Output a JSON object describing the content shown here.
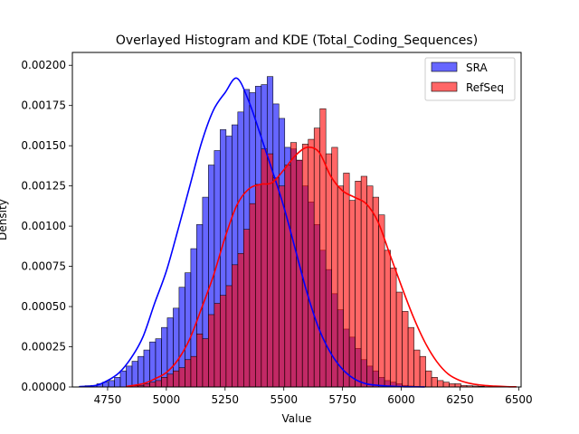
{
  "chart_data": {
    "type": "histogram",
    "title": "Overlayed Histogram and KDE (Total_Coding_Sequences)",
    "xlabel": "Value",
    "ylabel": "Density",
    "xlim": [
      4600,
      6510
    ],
    "ylim": [
      0,
      0.00208
    ],
    "x_ticks": [
      4750,
      5000,
      5250,
      5500,
      5750,
      6000,
      6250,
      6500
    ],
    "x_tick_labels": [
      "4750",
      "5000",
      "5250",
      "5500",
      "5750",
      "6000",
      "6250",
      "6500"
    ],
    "y_ticks": [
      0,
      0.00025,
      0.0005,
      0.00075,
      0.001,
      0.00125,
      0.0015,
      0.00175,
      0.002
    ],
    "y_tick_labels": [
      "0.00000",
      "0.00025",
      "0.00050",
      "0.00075",
      "0.00100",
      "0.00125",
      "0.00150",
      "0.00175",
      "0.00200"
    ],
    "legend_position": "top-right",
    "series": [
      {
        "name": "SRA",
        "color": "#0000ff",
        "bin_start": 4629,
        "bin_width": 25,
        "values": [
          4e-06,
          8e-06,
          1e-05,
          2e-05,
          3e-05,
          4e-05,
          6e-05,
          0.0001,
          0.00013,
          0.00016,
          0.00019,
          0.00023,
          0.00028,
          0.0003,
          0.00037,
          0.00043,
          0.00049,
          0.00062,
          0.00071,
          0.00086,
          0.00101,
          0.00118,
          0.00138,
          0.00147,
          0.0016,
          0.00156,
          0.00163,
          0.00171,
          0.00185,
          0.00183,
          0.00187,
          0.00188,
          0.00193,
          0.00176,
          0.00167,
          0.00149,
          0.00148,
          0.00141,
          0.00125,
          0.00115,
          0.00101,
          0.00085,
          0.00073,
          0.00058,
          0.00048,
          0.00036,
          0.00031,
          0.00024,
          0.00017,
          0.00013,
          0.0001,
          6e-05,
          4e-05,
          3e-05,
          2e-05,
          1e-05,
          6e-06,
          4e-06,
          2e-06,
          1e-06,
          1e-06,
          1e-06
        ]
      },
      {
        "name": "RefSeq",
        "color": "#ff0000",
        "bin_start": 4829,
        "bin_width": 25,
        "values": [
          4e-06,
          8e-06,
          1e-05,
          2e-05,
          3e-05,
          4e-05,
          6e-05,
          8e-05,
          0.0001,
          0.00012,
          0.00017,
          0.00019,
          0.00033,
          0.0003,
          0.00045,
          0.00052,
          0.00057,
          0.00063,
          0.00076,
          0.00083,
          0.00098,
          0.00114,
          0.00126,
          0.00148,
          0.00145,
          0.0013,
          0.00125,
          0.00138,
          0.00152,
          0.00141,
          0.00151,
          0.00154,
          0.00161,
          0.00173,
          0.00145,
          0.00149,
          0.00125,
          0.00133,
          0.00116,
          0.00128,
          0.00131,
          0.00125,
          0.00118,
          0.00107,
          0.00085,
          0.00074,
          0.00059,
          0.00047,
          0.00037,
          0.00023,
          0.00019,
          0.0001,
          6e-05,
          4e-05,
          3e-05,
          2e-05,
          2e-05,
          1e-05,
          8e-06,
          6e-06,
          4e-06,
          2e-06,
          2e-06,
          1e-06,
          1e-06,
          1e-06,
          1e-06
        ]
      }
    ],
    "kde": [
      {
        "name": "SRA",
        "color": "#0000ff",
        "x": [
          4629,
          4700,
          4750,
          4800,
          4850,
          4900,
          4950,
          5000,
          5050,
          5100,
          5150,
          5200,
          5250,
          5300,
          5350,
          5400,
          5450,
          5500,
          5550,
          5600,
          5650,
          5700,
          5750,
          5800,
          5850,
          5900,
          5950,
          6000,
          6050,
          6100
        ],
        "y": [
          2e-06,
          1e-05,
          4e-05,
          9e-05,
          0.00018,
          0.00031,
          0.00052,
          0.00072,
          0.00098,
          0.00125,
          0.00152,
          0.00172,
          0.00183,
          0.00192,
          0.00178,
          0.00157,
          0.00135,
          0.00112,
          0.00085,
          0.00058,
          0.00036,
          0.00021,
          0.00011,
          5e-05,
          2e-05,
          1e-05,
          5e-06,
          2e-06,
          1e-06,
          5e-07
        ]
      },
      {
        "name": "RefSeq",
        "color": "#ff0000",
        "x": [
          4829,
          4900,
          4950,
          5000,
          5050,
          5100,
          5150,
          5200,
          5250,
          5300,
          5350,
          5400,
          5450,
          5500,
          5550,
          5600,
          5650,
          5700,
          5750,
          5800,
          5850,
          5900,
          5950,
          6000,
          6050,
          6100,
          6150,
          6200,
          6250,
          6300,
          6350,
          6400,
          6450,
          6490
        ],
        "y": [
          3e-06,
          2e-05,
          5e-05,
          9e-05,
          0.00017,
          0.0003,
          0.00049,
          0.00069,
          0.00093,
          0.00113,
          0.00123,
          0.00126,
          0.00127,
          0.00135,
          0.00144,
          0.00149,
          0.00146,
          0.00131,
          0.00122,
          0.00118,
          0.00114,
          0.00103,
          0.00083,
          0.00063,
          0.00044,
          0.00028,
          0.00016,
          8e-05,
          4e-05,
          2e-05,
          1e-05,
          5e-06,
          2e-06,
          1e-06
        ]
      }
    ]
  }
}
